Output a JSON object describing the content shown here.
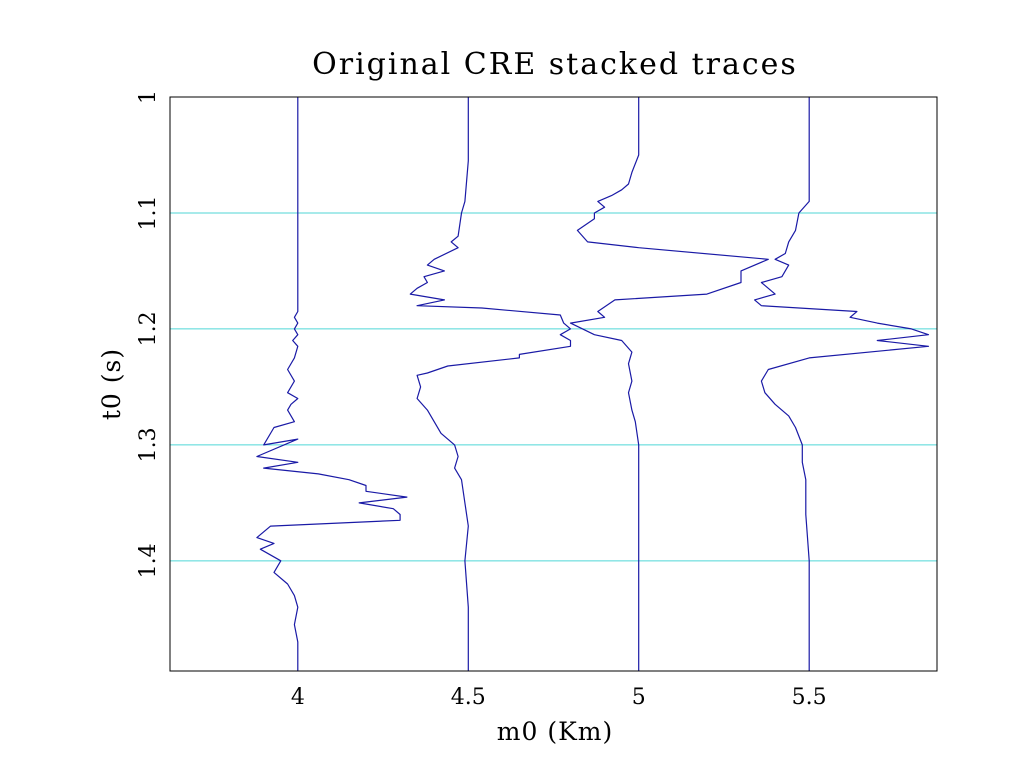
{
  "chart_data": {
    "type": "line",
    "title": "Original CRE stacked traces",
    "xlabel": "m0 (Km)",
    "ylabel": "t0 (s)",
    "xlim": [
      3.625,
      5.875
    ],
    "ylim": [
      1.0,
      1.495
    ],
    "y_inverted": true,
    "x_ticks": [
      {
        "value": 4,
        "label": "4"
      },
      {
        "value": 4.5,
        "label": "4.5"
      },
      {
        "value": 5,
        "label": "5"
      },
      {
        "value": 5.5,
        "label": "5.5"
      }
    ],
    "y_ticks": [
      {
        "value": 1.0,
        "label": "1"
      },
      {
        "value": 1.1,
        "label": "1.1"
      },
      {
        "value": 1.2,
        "label": "1.2"
      },
      {
        "value": 1.3,
        "label": "1.3"
      },
      {
        "value": 1.4,
        "label": "1.4"
      }
    ],
    "gridlines_y": [
      1.1,
      1.2,
      1.3,
      1.4
    ],
    "grid": true,
    "colors": {
      "trace": "#1a1aa6",
      "grid": "#4fd6d6",
      "frame": "#000000"
    },
    "series": [
      {
        "baseline": 4.0,
        "points": [
          [
            4.0,
            1.0
          ],
          [
            4.0,
            1.185
          ],
          [
            3.99,
            1.19
          ],
          [
            4.0,
            1.195
          ],
          [
            3.99,
            1.2
          ],
          [
            4.0,
            1.205
          ],
          [
            3.985,
            1.21
          ],
          [
            4.0,
            1.215
          ],
          [
            3.99,
            1.225
          ],
          [
            3.97,
            1.235
          ],
          [
            3.99,
            1.245
          ],
          [
            3.97,
            1.255
          ],
          [
            4.0,
            1.26
          ],
          [
            3.98,
            1.265
          ],
          [
            3.97,
            1.27
          ],
          [
            3.99,
            1.28
          ],
          [
            3.93,
            1.285
          ],
          [
            3.9,
            1.3
          ],
          [
            4.0,
            1.295
          ],
          [
            3.88,
            1.31
          ],
          [
            4.0,
            1.315
          ],
          [
            3.9,
            1.32
          ],
          [
            4.06,
            1.325
          ],
          [
            4.15,
            1.33
          ],
          [
            4.2,
            1.335
          ],
          [
            4.2,
            1.34
          ],
          [
            4.32,
            1.345
          ],
          [
            4.18,
            1.35
          ],
          [
            4.28,
            1.355
          ],
          [
            4.3,
            1.36
          ],
          [
            4.3,
            1.365
          ],
          [
            3.92,
            1.37
          ],
          [
            3.88,
            1.38
          ],
          [
            3.93,
            1.385
          ],
          [
            3.89,
            1.39
          ],
          [
            3.95,
            1.4
          ],
          [
            3.93,
            1.41
          ],
          [
            3.97,
            1.42
          ],
          [
            3.99,
            1.43
          ],
          [
            4.0,
            1.44
          ],
          [
            3.99,
            1.455
          ],
          [
            4.0,
            1.47
          ],
          [
            4.0,
            1.495
          ]
        ]
      },
      {
        "baseline": 4.5,
        "points": [
          [
            4.5,
            1.0
          ],
          [
            4.5,
            1.055
          ],
          [
            4.49,
            1.09
          ],
          [
            4.48,
            1.1
          ],
          [
            4.47,
            1.12
          ],
          [
            4.45,
            1.125
          ],
          [
            4.47,
            1.13
          ],
          [
            4.4,
            1.14
          ],
          [
            4.38,
            1.145
          ],
          [
            4.43,
            1.15
          ],
          [
            4.37,
            1.155
          ],
          [
            4.38,
            1.16
          ],
          [
            4.35,
            1.165
          ],
          [
            4.33,
            1.17
          ],
          [
            4.43,
            1.175
          ],
          [
            4.35,
            1.18
          ],
          [
            4.54,
            1.182
          ],
          [
            4.77,
            1.188
          ],
          [
            4.78,
            1.195
          ],
          [
            4.8,
            1.2
          ],
          [
            4.77,
            1.205
          ],
          [
            4.8,
            1.21
          ],
          [
            4.8,
            1.215
          ],
          [
            4.65,
            1.222
          ],
          [
            4.65,
            1.225
          ],
          [
            4.44,
            1.232
          ],
          [
            4.38,
            1.238
          ],
          [
            4.35,
            1.24
          ],
          [
            4.36,
            1.25
          ],
          [
            4.35,
            1.26
          ],
          [
            4.38,
            1.27
          ],
          [
            4.4,
            1.28
          ],
          [
            4.42,
            1.29
          ],
          [
            4.46,
            1.3
          ],
          [
            4.47,
            1.31
          ],
          [
            4.46,
            1.32
          ],
          [
            4.48,
            1.33
          ],
          [
            4.49,
            1.35
          ],
          [
            4.5,
            1.37
          ],
          [
            4.49,
            1.4
          ],
          [
            4.5,
            1.44
          ],
          [
            4.5,
            1.495
          ]
        ]
      },
      {
        "baseline": 5.0,
        "points": [
          [
            5.0,
            1.0
          ],
          [
            5.0,
            1.05
          ],
          [
            4.98,
            1.065
          ],
          [
            4.97,
            1.075
          ],
          [
            4.95,
            1.08
          ],
          [
            4.92,
            1.085
          ],
          [
            4.88,
            1.09
          ],
          [
            4.9,
            1.095
          ],
          [
            4.87,
            1.1
          ],
          [
            4.87,
            1.105
          ],
          [
            4.82,
            1.115
          ],
          [
            4.85,
            1.125
          ],
          [
            5.0,
            1.13
          ],
          [
            5.38,
            1.14
          ],
          [
            5.3,
            1.15
          ],
          [
            5.3,
            1.16
          ],
          [
            5.2,
            1.17
          ],
          [
            4.93,
            1.175
          ],
          [
            4.88,
            1.185
          ],
          [
            4.9,
            1.19
          ],
          [
            4.8,
            1.195
          ],
          [
            4.87,
            1.205
          ],
          [
            4.95,
            1.21
          ],
          [
            4.98,
            1.22
          ],
          [
            4.97,
            1.23
          ],
          [
            4.98,
            1.245
          ],
          [
            4.97,
            1.255
          ],
          [
            4.98,
            1.27
          ],
          [
            4.99,
            1.28
          ],
          [
            5.0,
            1.3
          ],
          [
            5.0,
            1.495
          ]
        ]
      },
      {
        "baseline": 5.5,
        "points": [
          [
            5.5,
            1.0
          ],
          [
            5.5,
            1.09
          ],
          [
            5.47,
            1.1
          ],
          [
            5.46,
            1.115
          ],
          [
            5.44,
            1.125
          ],
          [
            5.43,
            1.135
          ],
          [
            5.4,
            1.14
          ],
          [
            5.44,
            1.145
          ],
          [
            5.42,
            1.155
          ],
          [
            5.36,
            1.16
          ],
          [
            5.4,
            1.17
          ],
          [
            5.34,
            1.175
          ],
          [
            5.36,
            1.18
          ],
          [
            5.64,
            1.185
          ],
          [
            5.62,
            1.19
          ],
          [
            5.7,
            1.195
          ],
          [
            5.8,
            1.2
          ],
          [
            5.85,
            1.205
          ],
          [
            5.7,
            1.21
          ],
          [
            5.85,
            1.215
          ],
          [
            5.5,
            1.225
          ],
          [
            5.38,
            1.235
          ],
          [
            5.36,
            1.245
          ],
          [
            5.37,
            1.255
          ],
          [
            5.4,
            1.265
          ],
          [
            5.44,
            1.275
          ],
          [
            5.46,
            1.285
          ],
          [
            5.48,
            1.3
          ],
          [
            5.48,
            1.315
          ],
          [
            5.49,
            1.33
          ],
          [
            5.49,
            1.36
          ],
          [
            5.5,
            1.4
          ],
          [
            5.5,
            1.44
          ],
          [
            5.5,
            1.495
          ]
        ]
      }
    ]
  }
}
